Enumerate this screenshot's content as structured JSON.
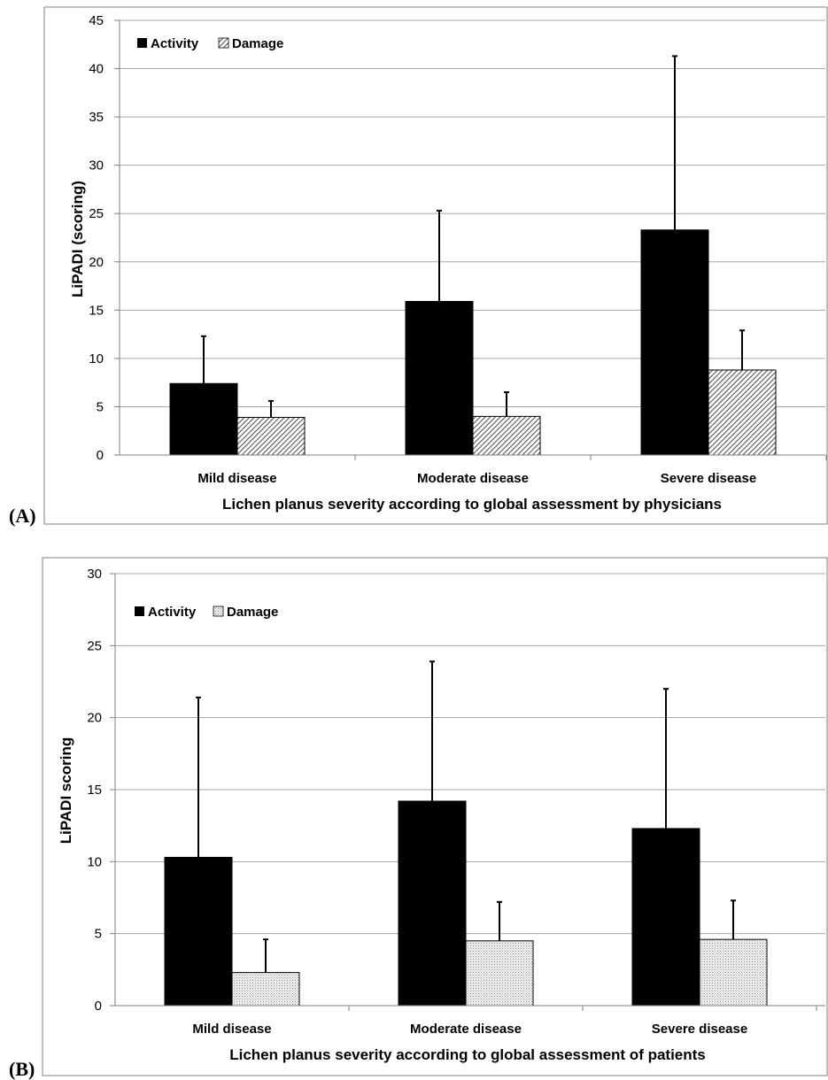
{
  "chart_data": [
    {
      "type": "bar",
      "panel_label": "(A)",
      "categories": [
        "Mild disease",
        "Moderate disease",
        "Severe disease"
      ],
      "series": [
        {
          "name": "Activity",
          "values": [
            7.4,
            15.9,
            23.3
          ],
          "error_plus": [
            4.9,
            9.4,
            18.0
          ],
          "fill": "solid-black"
        },
        {
          "name": "Damage",
          "values": [
            3.9,
            4.0,
            8.8
          ],
          "error_plus": [
            1.7,
            2.5,
            4.1
          ],
          "fill": "diagonal-hatch"
        }
      ],
      "xlabel": "Lichen planus severity according to global assessment by physicians",
      "ylabel": "LiPADI (scoring)",
      "ylim": [
        0,
        45
      ],
      "yticks": [
        0,
        5,
        10,
        15,
        20,
        25,
        30,
        35,
        40,
        45
      ],
      "grid": true,
      "legend_position": "top-left"
    },
    {
      "type": "bar",
      "panel_label": "(B)",
      "categories": [
        "Mild disease",
        "Moderate disease",
        "Severe disease"
      ],
      "series": [
        {
          "name": "Activity",
          "values": [
            10.3,
            14.2,
            12.3
          ],
          "error_plus": [
            11.1,
            9.7,
            9.7
          ],
          "fill": "solid-black"
        },
        {
          "name": "Damage",
          "values": [
            2.3,
            4.5,
            4.6
          ],
          "error_plus": [
            2.3,
            2.7,
            2.7
          ],
          "fill": "dotted"
        }
      ],
      "xlabel": "Lichen planus severity according to global assessment of patients",
      "ylabel": "LiPADI scoring",
      "ylim": [
        0,
        30
      ],
      "yticks": [
        0,
        5,
        10,
        15,
        20,
        25,
        30
      ],
      "grid": true,
      "legend_position": "top-left"
    }
  ],
  "colors": {
    "activity": "#000000",
    "damage_outline": "#000000",
    "grid": "#a6a6a6",
    "frame": "#7f7f7f"
  }
}
